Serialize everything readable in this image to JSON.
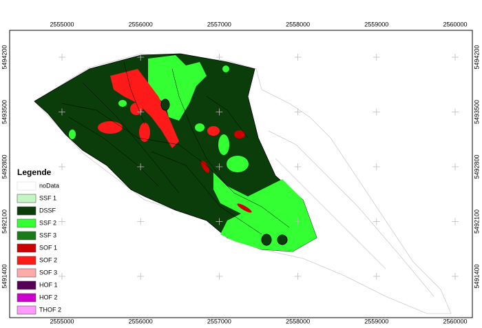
{
  "map": {
    "x_labels": [
      "2555000",
      "2556000",
      "2557000",
      "2558000",
      "2559000",
      "2560000"
    ],
    "y_labels": [
      "5494200",
      "5493500",
      "5492800",
      "5492100",
      "5491400"
    ],
    "legend": {
      "title": "Legende",
      "items": [
        {
          "name": "noData",
          "color": "#ffffff"
        },
        {
          "name": "SSF 1",
          "color": "#c4f5c4"
        },
        {
          "name": "DSSF",
          "color": "#0a3d0a"
        },
        {
          "name": "SSF 2",
          "color": "#33ff33"
        },
        {
          "name": "SSF 3",
          "color": "#1a7a1a"
        },
        {
          "name": "SOF 1",
          "color": "#cc0000"
        },
        {
          "name": "SOF 2",
          "color": "#ff1a1a"
        },
        {
          "name": "SOF 3",
          "color": "#ffaaaa"
        },
        {
          "name": "HOF 1",
          "color": "#550055"
        },
        {
          "name": "HOF 2",
          "color": "#cc00cc"
        },
        {
          "name": "THOF 2",
          "color": "#ff99ff"
        }
      ]
    }
  }
}
